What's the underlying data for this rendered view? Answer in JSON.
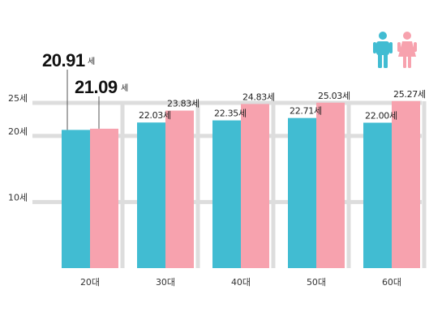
{
  "chart_data": {
    "type": "bar",
    "unit": "세",
    "categories": [
      "20대",
      "30대",
      "40대",
      "50대",
      "60대"
    ],
    "series": [
      {
        "icon": "male-icon",
        "color": "#41BCD2",
        "values": [
          20.91,
          22.03,
          22.35,
          22.71,
          22.0
        ]
      },
      {
        "icon": "female-icon",
        "color": "#F7A2AE",
        "values": [
          21.09,
          23.83,
          24.83,
          25.03,
          25.27
        ]
      }
    ],
    "data_labels": [
      [
        "20.91",
        "22.03",
        "22.35",
        "22.71",
        "22.00"
      ],
      [
        "21.09",
        "23.83",
        "24.83",
        "25.03",
        "25.27"
      ]
    ],
    "yticks": [
      {
        "value": 10,
        "label": "10세"
      },
      {
        "value": 20,
        "label": "20세"
      },
      {
        "value": 25,
        "label": "25세"
      }
    ],
    "grid": true,
    "legend": "top-right",
    "gridline_color": "#DDDDDD"
  }
}
